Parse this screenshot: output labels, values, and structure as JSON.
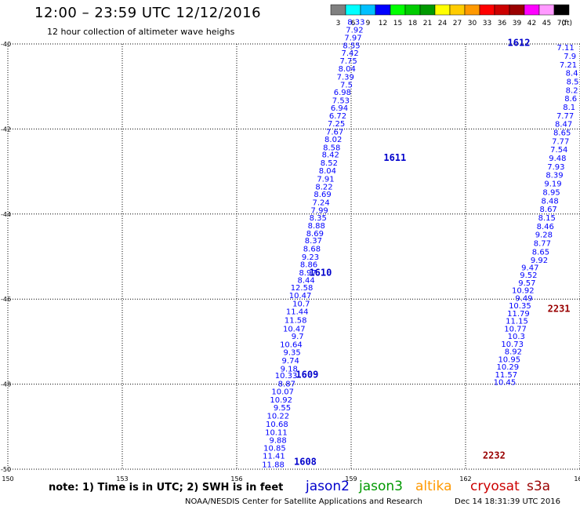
{
  "title": "12:00 – 23:59 UTC 12/12/2016",
  "subtitle": "12 hour collection of altimeter wave heighs",
  "note": "note: 1) Time is in UTC; 2) SWH is in feet",
  "footer": "NOAA/NESDIS Center for Satellite Applications and Research",
  "timestamp": "Dec 14 18:31:39 UTC 2016",
  "satellites": [
    {
      "name": "jason2",
      "color": "#0000cc"
    },
    {
      "name": "jason3",
      "color": "#009900"
    },
    {
      "name": "altika",
      "color": "#ff9900"
    },
    {
      "name": "cryosat",
      "color": "#cc0000"
    },
    {
      "name": "s3a",
      "color": "#990000"
    }
  ],
  "colorbar": {
    "unit_label": "(ft)",
    "boxes": [
      "#808080",
      "#00ffff",
      "#00c0ff",
      "#0000ff",
      "#00ff00",
      "#00cc00",
      "#009900",
      "#ffff00",
      "#ffcc00",
      "#ff9900",
      "#ff0000",
      "#cc0000",
      "#990000",
      "#ff00ff",
      "#ff99ff",
      "#000000"
    ],
    "labels": [
      "3",
      "6",
      "9",
      "12",
      "15",
      "18",
      "21",
      "24",
      "27",
      "30",
      "33",
      "36",
      "39",
      "42",
      "45",
      "70"
    ]
  },
  "chart_data": {
    "type": "scatter",
    "x_range": [
      150,
      165
    ],
    "y_range": [
      -50,
      -40
    ],
    "x_ticks": [
      150,
      153,
      156,
      159,
      162,
      165
    ],
    "y_ticks": [
      -40,
      -42,
      -44,
      -46,
      -48,
      -50
    ],
    "color_scale": [
      [
        12,
        "#0000ff"
      ],
      [
        15,
        "#00c0ff"
      ],
      [
        18,
        "#00ff00"
      ]
    ],
    "tracks": [
      {
        "label": "1608",
        "label_pos": [
          157.5,
          -49.9
        ],
        "label_color": "#0000cc",
        "points": [
          [
            157.25,
            -49.95,
            11.88
          ],
          [
            157.27,
            -49.75,
            11.41
          ],
          [
            157.29,
            -49.57,
            10.85
          ],
          [
            157.31,
            -49.38,
            9.88
          ],
          [
            157.33,
            -49.2,
            10.11
          ],
          [
            157.35,
            -49.0,
            10.68
          ],
          [
            157.38,
            -48.81,
            10.22
          ],
          [
            157.42,
            -48.62,
            9.55
          ],
          [
            157.46,
            -48.43,
            10.92
          ],
          [
            157.5,
            -48.24,
            10.07
          ],
          [
            157.54,
            -48.05,
            8.87
          ],
          [
            157.59,
            -47.86,
            10.33
          ]
        ]
      },
      {
        "label": "1609",
        "label_pos": [
          157.55,
          -47.85
        ],
        "label_color": "#0000cc",
        "points": [
          [
            157.6,
            -47.7,
            9.18
          ],
          [
            157.64,
            -47.51,
            9.74
          ],
          [
            157.68,
            -47.32,
            9.35
          ],
          [
            157.72,
            -47.13,
            10.64
          ],
          [
            157.76,
            -46.94,
            9.7
          ],
          [
            157.8,
            -46.76,
            10.47
          ],
          [
            157.84,
            -46.56,
            11.58
          ],
          [
            157.88,
            -46.36,
            11.44
          ],
          [
            157.92,
            -46.17,
            10.7
          ],
          [
            157.96,
            -45.98,
            10.47
          ],
          [
            158.0,
            -45.79,
            12.58
          ],
          [
            158.05,
            -45.62,
            8.44
          ],
          [
            158.09,
            -45.44,
            8.97
          ],
          [
            158.12,
            -45.25,
            8.86
          ],
          [
            158.16,
            -45.07,
            9.23
          ]
        ]
      },
      {
        "label": "1610",
        "label_pos": [
          157.9,
          -45.45
        ],
        "label_color": "#0000cc",
        "points": [
          [
            158.2,
            -44.88,
            8.68
          ],
          [
            158.24,
            -44.69,
            8.37
          ],
          [
            158.28,
            -44.52,
            8.69
          ],
          [
            158.32,
            -44.34,
            8.88
          ],
          [
            158.36,
            -44.15,
            8.35
          ],
          [
            158.4,
            -43.98,
            7.99
          ],
          [
            158.44,
            -43.79,
            7.24
          ],
          [
            158.48,
            -43.6,
            8.69
          ],
          [
            158.52,
            -43.42,
            8.22
          ],
          [
            158.56,
            -43.24,
            7.91
          ],
          [
            158.61,
            -43.04,
            8.04
          ],
          [
            158.65,
            -42.86,
            8.52
          ],
          [
            158.69,
            -42.67,
            8.42
          ],
          [
            158.72,
            -42.5,
            8.58
          ],
          [
            158.76,
            -42.31,
            8.02
          ],
          [
            158.8,
            -42.13,
            7.67
          ]
        ]
      },
      {
        "label": "1611",
        "label_pos": [
          159.85,
          -42.75
        ],
        "label_color": "#0000cc",
        "points": [
          [
            158.84,
            -41.94,
            7.25
          ],
          [
            158.88,
            -41.75,
            6.72
          ],
          [
            158.92,
            -41.57,
            6.94
          ],
          [
            158.96,
            -41.39,
            7.53
          ],
          [
            159.0,
            -41.2,
            6.98
          ],
          [
            159.04,
            -41.02,
            7.5
          ],
          [
            159.08,
            -40.84,
            7.39
          ],
          [
            159.12,
            -40.65,
            8.04
          ],
          [
            159.16,
            -40.46,
            7.75
          ],
          [
            159.2,
            -40.28,
            7.42
          ],
          [
            159.24,
            -40.1,
            8.55
          ],
          [
            159.28,
            -39.92,
            7.97
          ],
          [
            159.32,
            -39.73,
            7.92
          ],
          [
            159.36,
            -39.55,
            8.33
          ]
        ]
      },
      {
        "label": "1612",
        "label_pos": [
          163.1,
          -40.05
        ],
        "label_color": "#0000cc",
        "points": []
      },
      {
        "label": "2231",
        "label_pos": [
          164.15,
          -46.3
        ],
        "label_color": "#990000",
        "points": [
          [
            164.85,
            -40.15,
            7.11
          ],
          [
            164.9,
            -40.35,
            7.9
          ],
          [
            164.92,
            -40.55,
            7.21
          ],
          [
            164.95,
            -40.75,
            8.4
          ],
          [
            164.97,
            -40.95,
            8.5
          ],
          [
            164.95,
            -41.15,
            8.2
          ],
          [
            164.92,
            -41.35,
            8.6
          ],
          [
            164.88,
            -41.55,
            8.1
          ],
          [
            164.84,
            -41.75,
            7.77
          ],
          [
            164.8,
            -41.95,
            8.47
          ],
          [
            164.76,
            -42.15,
            8.65
          ],
          [
            164.72,
            -42.35,
            7.77
          ],
          [
            164.68,
            -42.55,
            7.54
          ],
          [
            164.64,
            -42.75,
            9.48
          ],
          [
            164.6,
            -42.95,
            7.93
          ],
          [
            164.56,
            -43.15,
            8.39
          ],
          [
            164.52,
            -43.35,
            9.19
          ],
          [
            164.48,
            -43.55,
            8.95
          ],
          [
            164.44,
            -43.75,
            8.48
          ],
          [
            164.4,
            -43.95,
            8.67
          ],
          [
            164.36,
            -44.15,
            8.15
          ],
          [
            164.32,
            -44.35,
            8.46
          ],
          [
            164.28,
            -44.55,
            9.28
          ],
          [
            164.24,
            -44.75,
            8.77
          ],
          [
            164.2,
            -44.95,
            8.65
          ],
          [
            164.16,
            -45.15,
            9.92
          ]
        ]
      },
      {
        "label": "2232",
        "label_pos": [
          162.45,
          -49.75
        ],
        "label_color": "#990000",
        "points": [
          [
            163.92,
            -45.32,
            9.47
          ],
          [
            163.88,
            -45.5,
            9.52
          ],
          [
            163.84,
            -45.68,
            9.57
          ],
          [
            163.8,
            -45.86,
            10.92
          ],
          [
            163.76,
            -46.04,
            9.49
          ],
          [
            163.72,
            -46.22,
            10.35
          ],
          [
            163.68,
            -46.4,
            11.79
          ],
          [
            163.64,
            -46.58,
            11.15
          ],
          [
            163.6,
            -46.76,
            10.77
          ],
          [
            163.56,
            -46.94,
            10.3
          ],
          [
            163.52,
            -47.12,
            10.73
          ],
          [
            163.48,
            -47.3,
            8.92
          ],
          [
            163.44,
            -47.48,
            10.95
          ],
          [
            163.4,
            -47.66,
            10.29
          ],
          [
            163.36,
            -47.84,
            11.57
          ],
          [
            163.32,
            -48.02,
            10.45
          ]
        ]
      }
    ]
  }
}
